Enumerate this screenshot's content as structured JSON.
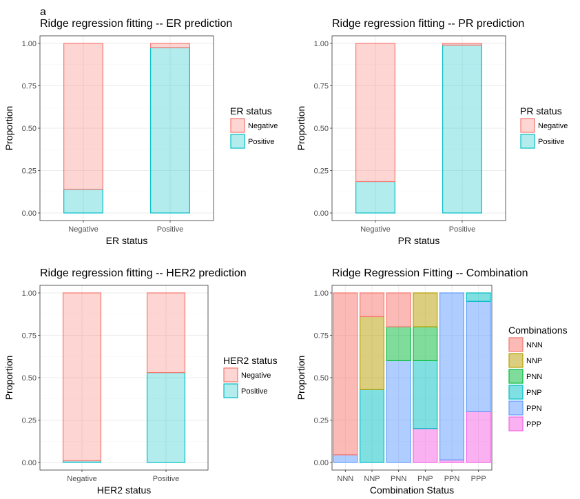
{
  "panel_tag": "a",
  "colors": {
    "negative_fill": "#F8766D",
    "positive_fill": "#00BFC4",
    "NNN": "#F8766D",
    "NNP": "#B79F00",
    "PNN": "#00BA38",
    "PNP": "#00BFC4",
    "PPN": "#619CFF",
    "PPP": "#F564E3"
  },
  "chart_data": [
    {
      "type": "bar",
      "stacked": true,
      "title": "Ridge regression fitting -- ER prediction",
      "xlabel": "ER status",
      "ylabel": "Proportion",
      "ylim": [
        0,
        1
      ],
      "yticks": [
        "0.00",
        "0.25",
        "0.50",
        "0.75",
        "1.00"
      ],
      "categories": [
        "Negative",
        "Positive"
      ],
      "legend_title": "ER status",
      "legend_position": "right",
      "series": [
        {
          "name": "Negative",
          "values": [
            0.86,
            0.025
          ]
        },
        {
          "name": "Positive",
          "values": [
            0.14,
            0.975
          ]
        }
      ]
    },
    {
      "type": "bar",
      "stacked": true,
      "title": "Ridge regression fitting -- PR prediction",
      "xlabel": "PR status",
      "ylabel": "Proportion",
      "ylim": [
        0,
        1
      ],
      "yticks": [
        "0.00",
        "0.25",
        "0.50",
        "0.75",
        "1.00"
      ],
      "categories": [
        "Negative",
        "Positive"
      ],
      "legend_title": "PR status",
      "legend_position": "right",
      "series": [
        {
          "name": "Negative",
          "values": [
            0.815,
            0.01
          ]
        },
        {
          "name": "Positive",
          "values": [
            0.185,
            0.99
          ]
        }
      ]
    },
    {
      "type": "bar",
      "stacked": true,
      "title": "Ridge regression fitting -- HER2 prediction",
      "xlabel": "HER2 status",
      "ylabel": "Proportion",
      "ylim": [
        0,
        1
      ],
      "yticks": [
        "0.00",
        "0.25",
        "0.50",
        "0.75",
        "1.00"
      ],
      "categories": [
        "Negative",
        "Positive"
      ],
      "legend_title": "HER2 status",
      "legend_position": "right",
      "series": [
        {
          "name": "Negative",
          "values": [
            0.99,
            0.47
          ]
        },
        {
          "name": "Positive",
          "values": [
            0.01,
            0.53
          ]
        }
      ]
    },
    {
      "type": "bar",
      "stacked": true,
      "title": "Ridge Regression Fitting -- Combination",
      "xlabel": "Combination Status",
      "ylabel": "Proportion",
      "ylim": [
        0,
        1
      ],
      "yticks": [
        "0.00",
        "0.25",
        "0.50",
        "0.75",
        "1.00"
      ],
      "categories": [
        "NNN",
        "NNP",
        "PNN",
        "PNP",
        "PPN",
        "PPP"
      ],
      "legend_title": "Combinations",
      "legend_position": "right",
      "series": [
        {
          "name": "NNN",
          "values": [
            0.955,
            0.14,
            0.2,
            0,
            0,
            0
          ]
        },
        {
          "name": "NNP",
          "values": [
            0,
            0.43,
            0,
            0.2,
            0,
            0
          ]
        },
        {
          "name": "PNN",
          "values": [
            0,
            0,
            0.2,
            0.2,
            0,
            0
          ]
        },
        {
          "name": "PNP",
          "values": [
            0,
            0.43,
            0,
            0.4,
            0,
            0.05
          ]
        },
        {
          "name": "PPN",
          "values": [
            0.045,
            0,
            0.6,
            0,
            0.985,
            0.65
          ]
        },
        {
          "name": "PPP",
          "values": [
            0,
            0,
            0,
            0.2,
            0.015,
            0.3
          ]
        }
      ]
    }
  ]
}
